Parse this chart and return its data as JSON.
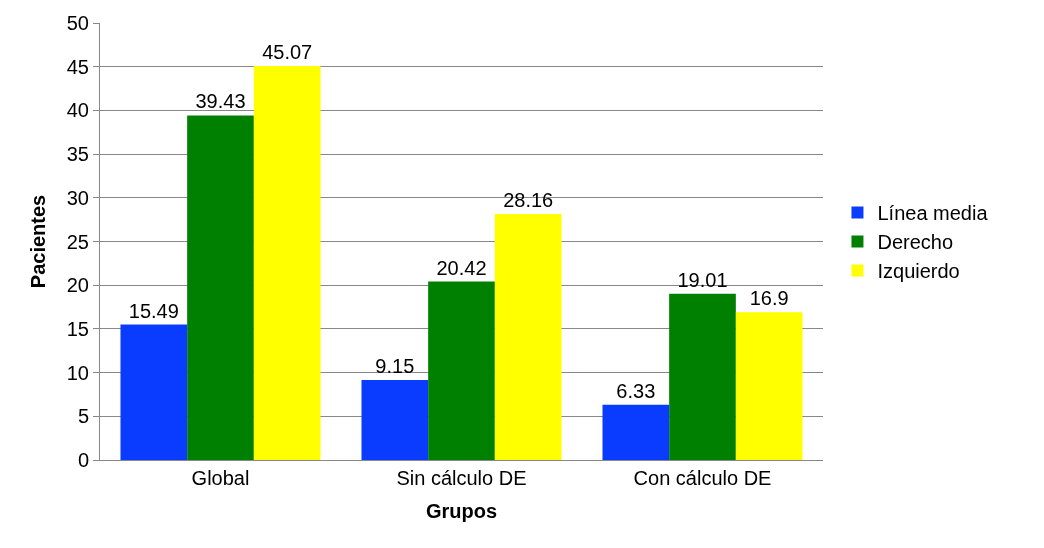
{
  "chart_data": {
    "type": "bar",
    "xlabel": "Grupos",
    "ylabel": "Pacientes",
    "categories": [
      "Global",
      "Sin cálculo DE",
      "Con cálculo DE"
    ],
    "series": [
      {
        "name": "Línea media",
        "color": "#0a3cff",
        "values": [
          15.49,
          9.15,
          6.33
        ]
      },
      {
        "name": "Derecho",
        "color": "#008000",
        "values": [
          39.43,
          20.42,
          19.01
        ]
      },
      {
        "name": "Izquierdo",
        "color": "#ffff00",
        "values": [
          45.07,
          28.16,
          16.9
        ]
      }
    ],
    "ylim": [
      0,
      50
    ],
    "yticks": [
      0,
      5,
      10,
      15,
      20,
      25,
      30,
      35,
      40,
      45,
      50
    ],
    "grid": "y",
    "legend": "right",
    "data_labels": true
  }
}
